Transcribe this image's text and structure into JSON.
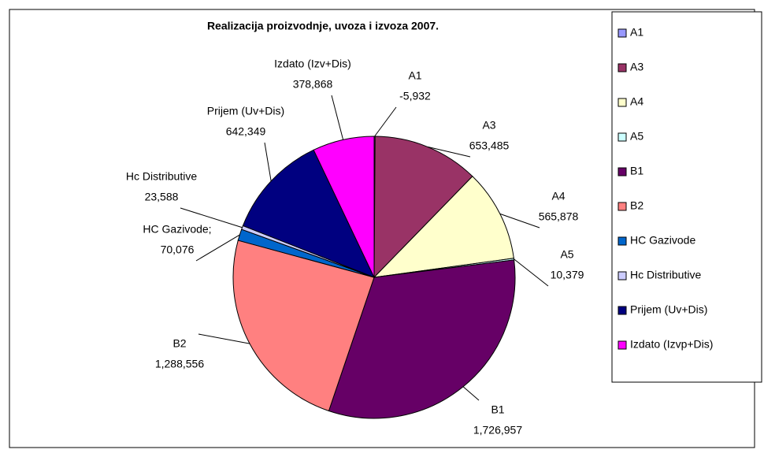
{
  "chart_data": {
    "type": "pie",
    "title": "Realizacija proizvodnje, uvoza i izvoza 2007.",
    "categories": [
      "A1",
      "A3",
      "A4",
      "A5",
      "B1",
      "B2",
      "HC Gazivode",
      "Hc Distributive",
      "Prijem (Uv+Dis)",
      "Izdato (Izvp+Dis)"
    ],
    "label_names": [
      "A1",
      "A3",
      "A4",
      "A5",
      "B1",
      "B2",
      "HC Gazivode;",
      "Hc Distributive",
      "Prijem (Uv+Dis)",
      "Izdato (Izv+Dis)"
    ],
    "values": [
      -5932,
      653485,
      565878,
      10379,
      1726957,
      1288556,
      70076,
      23588,
      642349,
      378868
    ],
    "value_labels": [
      "-5,932",
      "653,485",
      "565,878",
      "10,379",
      "1,726,957",
      "1,288,556",
      "70,076",
      "23,588",
      "642,349",
      "378,868"
    ],
    "colors": [
      "#9999ff",
      "#993366",
      "#ffffcc",
      "#ccffff",
      "#660066",
      "#ff8080",
      "#0066cc",
      "#ccccff",
      "#000080",
      "#ff00ff"
    ],
    "legend": "right"
  }
}
